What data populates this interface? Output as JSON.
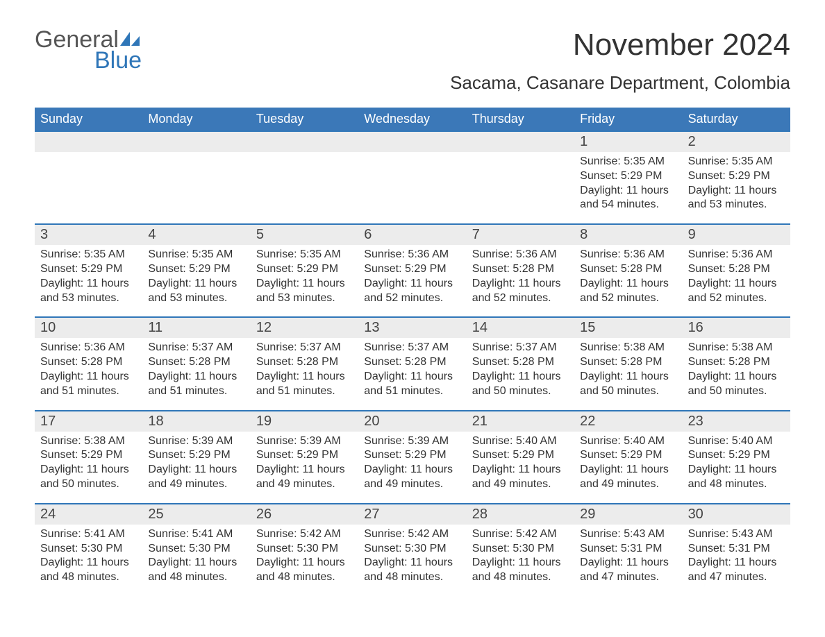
{
  "logo": {
    "text_general": "General",
    "text_blue": "Blue"
  },
  "title": "November 2024",
  "location": "Sacama, Casanare Department, Colombia",
  "colors": {
    "header_bg": "#3b78b8",
    "header_text": "#ffffff",
    "week_border": "#2f76b8",
    "daynum_bg": "#ececec",
    "text": "#333333",
    "logo_gray": "#555555",
    "logo_blue": "#2f76b8",
    "background": "#ffffff"
  },
  "weekdays": [
    "Sunday",
    "Monday",
    "Tuesday",
    "Wednesday",
    "Thursday",
    "Friday",
    "Saturday"
  ],
  "weeks": [
    {
      "days": [
        {
          "num": "",
          "sunrise": "",
          "sunset": "",
          "daylight1": "",
          "daylight2": ""
        },
        {
          "num": "",
          "sunrise": "",
          "sunset": "",
          "daylight1": "",
          "daylight2": ""
        },
        {
          "num": "",
          "sunrise": "",
          "sunset": "",
          "daylight1": "",
          "daylight2": ""
        },
        {
          "num": "",
          "sunrise": "",
          "sunset": "",
          "daylight1": "",
          "daylight2": ""
        },
        {
          "num": "",
          "sunrise": "",
          "sunset": "",
          "daylight1": "",
          "daylight2": ""
        },
        {
          "num": "1",
          "sunrise": "Sunrise: 5:35 AM",
          "sunset": "Sunset: 5:29 PM",
          "daylight1": "Daylight: 11 hours",
          "daylight2": "and 54 minutes."
        },
        {
          "num": "2",
          "sunrise": "Sunrise: 5:35 AM",
          "sunset": "Sunset: 5:29 PM",
          "daylight1": "Daylight: 11 hours",
          "daylight2": "and 53 minutes."
        }
      ]
    },
    {
      "days": [
        {
          "num": "3",
          "sunrise": "Sunrise: 5:35 AM",
          "sunset": "Sunset: 5:29 PM",
          "daylight1": "Daylight: 11 hours",
          "daylight2": "and 53 minutes."
        },
        {
          "num": "4",
          "sunrise": "Sunrise: 5:35 AM",
          "sunset": "Sunset: 5:29 PM",
          "daylight1": "Daylight: 11 hours",
          "daylight2": "and 53 minutes."
        },
        {
          "num": "5",
          "sunrise": "Sunrise: 5:35 AM",
          "sunset": "Sunset: 5:29 PM",
          "daylight1": "Daylight: 11 hours",
          "daylight2": "and 53 minutes."
        },
        {
          "num": "6",
          "sunrise": "Sunrise: 5:36 AM",
          "sunset": "Sunset: 5:29 PM",
          "daylight1": "Daylight: 11 hours",
          "daylight2": "and 52 minutes."
        },
        {
          "num": "7",
          "sunrise": "Sunrise: 5:36 AM",
          "sunset": "Sunset: 5:28 PM",
          "daylight1": "Daylight: 11 hours",
          "daylight2": "and 52 minutes."
        },
        {
          "num": "8",
          "sunrise": "Sunrise: 5:36 AM",
          "sunset": "Sunset: 5:28 PM",
          "daylight1": "Daylight: 11 hours",
          "daylight2": "and 52 minutes."
        },
        {
          "num": "9",
          "sunrise": "Sunrise: 5:36 AM",
          "sunset": "Sunset: 5:28 PM",
          "daylight1": "Daylight: 11 hours",
          "daylight2": "and 52 minutes."
        }
      ]
    },
    {
      "days": [
        {
          "num": "10",
          "sunrise": "Sunrise: 5:36 AM",
          "sunset": "Sunset: 5:28 PM",
          "daylight1": "Daylight: 11 hours",
          "daylight2": "and 51 minutes."
        },
        {
          "num": "11",
          "sunrise": "Sunrise: 5:37 AM",
          "sunset": "Sunset: 5:28 PM",
          "daylight1": "Daylight: 11 hours",
          "daylight2": "and 51 minutes."
        },
        {
          "num": "12",
          "sunrise": "Sunrise: 5:37 AM",
          "sunset": "Sunset: 5:28 PM",
          "daylight1": "Daylight: 11 hours",
          "daylight2": "and 51 minutes."
        },
        {
          "num": "13",
          "sunrise": "Sunrise: 5:37 AM",
          "sunset": "Sunset: 5:28 PM",
          "daylight1": "Daylight: 11 hours",
          "daylight2": "and 51 minutes."
        },
        {
          "num": "14",
          "sunrise": "Sunrise: 5:37 AM",
          "sunset": "Sunset: 5:28 PM",
          "daylight1": "Daylight: 11 hours",
          "daylight2": "and 50 minutes."
        },
        {
          "num": "15",
          "sunrise": "Sunrise: 5:38 AM",
          "sunset": "Sunset: 5:28 PM",
          "daylight1": "Daylight: 11 hours",
          "daylight2": "and 50 minutes."
        },
        {
          "num": "16",
          "sunrise": "Sunrise: 5:38 AM",
          "sunset": "Sunset: 5:28 PM",
          "daylight1": "Daylight: 11 hours",
          "daylight2": "and 50 minutes."
        }
      ]
    },
    {
      "days": [
        {
          "num": "17",
          "sunrise": "Sunrise: 5:38 AM",
          "sunset": "Sunset: 5:29 PM",
          "daylight1": "Daylight: 11 hours",
          "daylight2": "and 50 minutes."
        },
        {
          "num": "18",
          "sunrise": "Sunrise: 5:39 AM",
          "sunset": "Sunset: 5:29 PM",
          "daylight1": "Daylight: 11 hours",
          "daylight2": "and 49 minutes."
        },
        {
          "num": "19",
          "sunrise": "Sunrise: 5:39 AM",
          "sunset": "Sunset: 5:29 PM",
          "daylight1": "Daylight: 11 hours",
          "daylight2": "and 49 minutes."
        },
        {
          "num": "20",
          "sunrise": "Sunrise: 5:39 AM",
          "sunset": "Sunset: 5:29 PM",
          "daylight1": "Daylight: 11 hours",
          "daylight2": "and 49 minutes."
        },
        {
          "num": "21",
          "sunrise": "Sunrise: 5:40 AM",
          "sunset": "Sunset: 5:29 PM",
          "daylight1": "Daylight: 11 hours",
          "daylight2": "and 49 minutes."
        },
        {
          "num": "22",
          "sunrise": "Sunrise: 5:40 AM",
          "sunset": "Sunset: 5:29 PM",
          "daylight1": "Daylight: 11 hours",
          "daylight2": "and 49 minutes."
        },
        {
          "num": "23",
          "sunrise": "Sunrise: 5:40 AM",
          "sunset": "Sunset: 5:29 PM",
          "daylight1": "Daylight: 11 hours",
          "daylight2": "and 48 minutes."
        }
      ]
    },
    {
      "days": [
        {
          "num": "24",
          "sunrise": "Sunrise: 5:41 AM",
          "sunset": "Sunset: 5:30 PM",
          "daylight1": "Daylight: 11 hours",
          "daylight2": "and 48 minutes."
        },
        {
          "num": "25",
          "sunrise": "Sunrise: 5:41 AM",
          "sunset": "Sunset: 5:30 PM",
          "daylight1": "Daylight: 11 hours",
          "daylight2": "and 48 minutes."
        },
        {
          "num": "26",
          "sunrise": "Sunrise: 5:42 AM",
          "sunset": "Sunset: 5:30 PM",
          "daylight1": "Daylight: 11 hours",
          "daylight2": "and 48 minutes."
        },
        {
          "num": "27",
          "sunrise": "Sunrise: 5:42 AM",
          "sunset": "Sunset: 5:30 PM",
          "daylight1": "Daylight: 11 hours",
          "daylight2": "and 48 minutes."
        },
        {
          "num": "28",
          "sunrise": "Sunrise: 5:42 AM",
          "sunset": "Sunset: 5:30 PM",
          "daylight1": "Daylight: 11 hours",
          "daylight2": "and 48 minutes."
        },
        {
          "num": "29",
          "sunrise": "Sunrise: 5:43 AM",
          "sunset": "Sunset: 5:31 PM",
          "daylight1": "Daylight: 11 hours",
          "daylight2": "and 47 minutes."
        },
        {
          "num": "30",
          "sunrise": "Sunrise: 5:43 AM",
          "sunset": "Sunset: 5:31 PM",
          "daylight1": "Daylight: 11 hours",
          "daylight2": "and 47 minutes."
        }
      ]
    }
  ]
}
